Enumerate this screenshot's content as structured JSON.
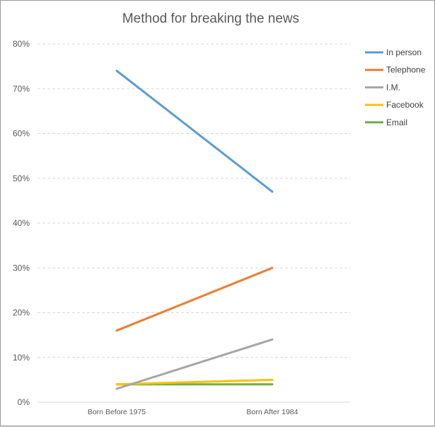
{
  "chart_data": {
    "type": "line",
    "title": "Method for breaking the news",
    "xlabel": "",
    "ylabel": "",
    "categories": [
      "Born Before 1975",
      "Born After 1984"
    ],
    "ylim": [
      0,
      80
    ],
    "yticks": [
      0,
      10,
      20,
      30,
      40,
      50,
      60,
      70,
      80
    ],
    "ytick_labels": [
      "0%",
      "10%",
      "20%",
      "30%",
      "40%",
      "50%",
      "60%",
      "70%",
      "80%"
    ],
    "grid": true,
    "legend_position": "right",
    "series": [
      {
        "name": "In person",
        "values": [
          74,
          47
        ],
        "color": "#5b9bd5"
      },
      {
        "name": "Telephone",
        "values": [
          16,
          30
        ],
        "color": "#ed7d31"
      },
      {
        "name": "I.M.",
        "values": [
          3,
          14
        ],
        "color": "#a5a5a5"
      },
      {
        "name": "Facebook",
        "values": [
          4,
          5
        ],
        "color": "#ffc000"
      },
      {
        "name": "Email",
        "values": [
          4,
          4
        ],
        "color": "#70ad47"
      }
    ]
  }
}
